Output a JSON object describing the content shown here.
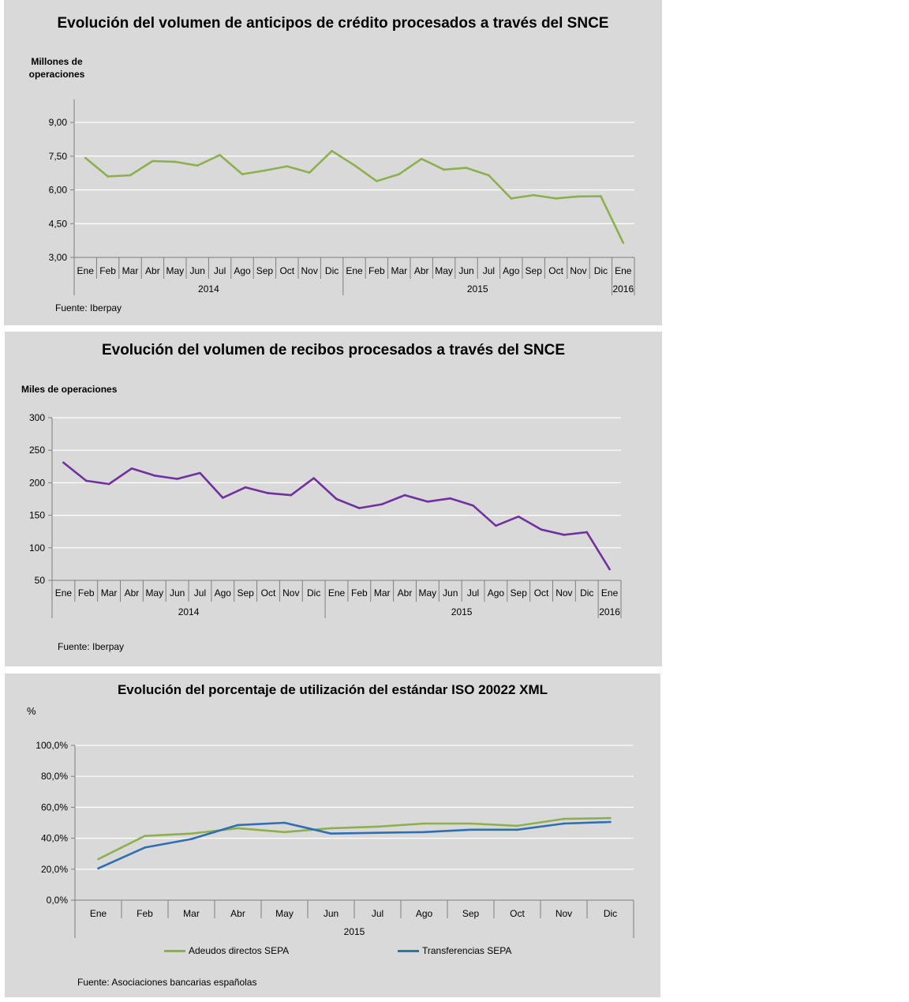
{
  "chart_data": [
    {
      "type": "line",
      "title": "Evolución del volumen de anticipos de crédito procesados a través del SNCE",
      "ylabel": "Millones de operaciones",
      "ylim": [
        3.0,
        9.0
      ],
      "yticks": [
        "3,00",
        "4,50",
        "6,00",
        "7,50",
        "9,00"
      ],
      "ytick_values": [
        3.0,
        4.5,
        6.0,
        7.5,
        9.0
      ],
      "categories": [
        "Ene",
        "Feb",
        "Mar",
        "Abr",
        "May",
        "Jun",
        "Jul",
        "Ago",
        "Sep",
        "Oct",
        "Nov",
        "Dic",
        "Ene",
        "Feb",
        "Mar",
        "Abr",
        "May",
        "Jun",
        "Jul",
        "Ago",
        "Sep",
        "Oct",
        "Nov",
        "Dic",
        "Ene"
      ],
      "year_groups": [
        {
          "label": "2014",
          "span": 12
        },
        {
          "label": "2015",
          "span": 12
        },
        {
          "label": "2016",
          "span": 1
        }
      ],
      "grid": true,
      "series": [
        {
          "color": "#8db04f",
          "values": [
            7.42,
            6.6,
            6.65,
            7.28,
            7.25,
            7.08,
            7.55,
            6.7,
            6.86,
            7.05,
            6.77,
            7.73,
            7.1,
            6.39,
            6.7,
            7.38,
            6.9,
            6.98,
            6.65,
            5.62,
            5.77,
            5.62,
            5.71,
            5.72,
            3.65
          ]
        }
      ],
      "source": "Fuente: Iberpay"
    },
    {
      "type": "line",
      "title": "Evolución del volumen de recibos procesados a través del SNCE",
      "ylabel": "Miles de operaciones",
      "ylim": [
        50,
        300
      ],
      "yticks": [
        "50",
        "100",
        "150",
        "200",
        "250",
        "300"
      ],
      "ytick_values": [
        50,
        100,
        150,
        200,
        250,
        300
      ],
      "categories": [
        "Ene",
        "Feb",
        "Mar",
        "Abr",
        "May",
        "Jun",
        "Jul",
        "Ago",
        "Sep",
        "Oct",
        "Nov",
        "Dic",
        "Ene",
        "Feb",
        "Mar",
        "Abr",
        "May",
        "Jun",
        "Jul",
        "Ago",
        "Sep",
        "Oct",
        "Nov",
        "Dic",
        "Ene"
      ],
      "year_groups": [
        {
          "label": "2014",
          "span": 12
        },
        {
          "label": "2015",
          "span": 12
        },
        {
          "label": "2016",
          "span": 1
        }
      ],
      "grid": true,
      "series": [
        {
          "color": "#7030a0",
          "values": [
            231,
            203,
            198,
            222,
            211,
            206,
            215,
            177,
            193,
            184,
            181,
            207,
            175,
            161,
            167,
            181,
            171,
            176,
            165,
            134,
            148,
            128,
            120,
            124,
            67
          ]
        }
      ],
      "source": "Fuente: Iberpay"
    },
    {
      "type": "line",
      "title": "Evolución del porcentaje de utilización del estándar ISO 20022 XML",
      "ylabel": "%",
      "ylim": [
        0,
        100
      ],
      "yticks": [
        "0,0%",
        "20,0%",
        "40,0%",
        "60,0%",
        "80,0%",
        "100,0%"
      ],
      "ytick_values": [
        0,
        20,
        40,
        60,
        80,
        100
      ],
      "categories": [
        "Ene",
        "Feb",
        "Mar",
        "Abr",
        "May",
        "Jun",
        "Jul",
        "Ago",
        "Sep",
        "Oct",
        "Nov",
        "Dic"
      ],
      "year_groups": [
        {
          "label": "2015",
          "span": 12
        }
      ],
      "grid": true,
      "legend": "bottom",
      "series": [
        {
          "name": "Adeudos directos SEPA",
          "color": "#8db04f",
          "values": [
            26.5,
            41.5,
            43.0,
            46.5,
            44.0,
            46.5,
            47.5,
            49.5,
            49.5,
            48.0,
            52.5,
            53.0
          ]
        },
        {
          "name": "Transferencias SEPA",
          "color": "#2f6eb5",
          "values": [
            20.5,
            34.0,
            39.5,
            48.5,
            50.0,
            43.0,
            43.5,
            44.0,
            45.5,
            45.5,
            49.5,
            50.5
          ]
        }
      ],
      "source": "Fuente: Asociaciones bancarias españolas"
    }
  ]
}
